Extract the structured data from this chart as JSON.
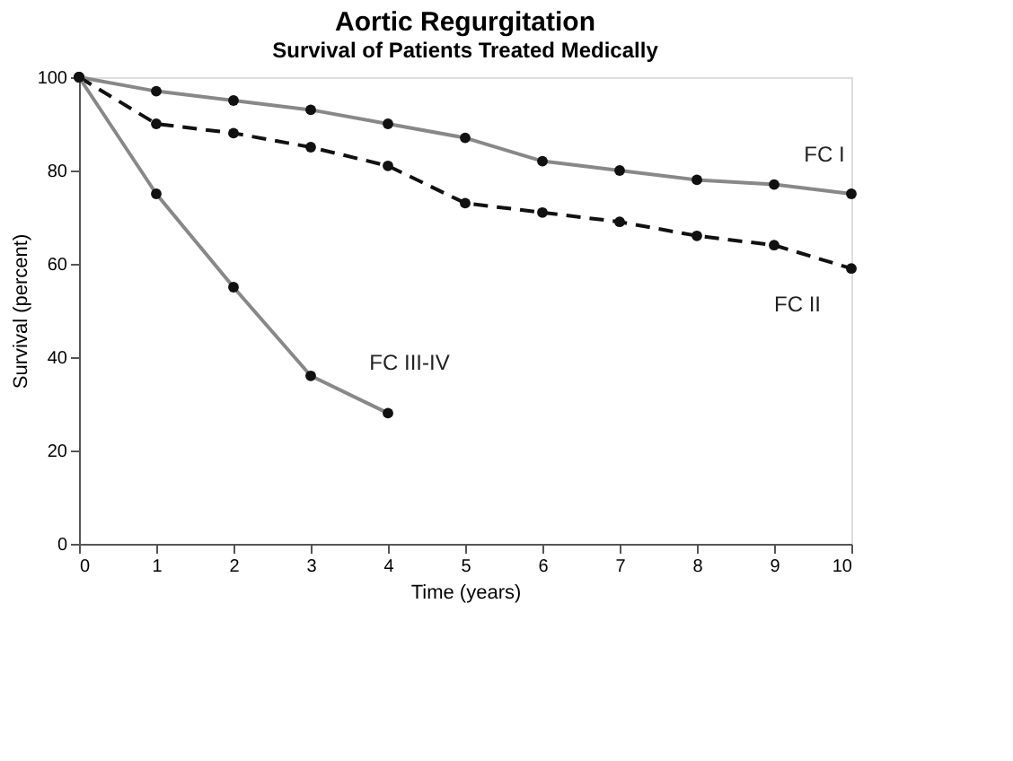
{
  "chart_data": {
    "type": "line",
    "title": "Aortic Regurgitation",
    "subtitle": "Survival of Patients Treated Medically",
    "xlabel": "Time (years)",
    "ylabel": "Survival (percent)",
    "x": [
      0,
      1,
      2,
      3,
      4,
      5,
      6,
      7,
      8,
      9,
      10
    ],
    "series": [
      {
        "name": "FC I",
        "color": "#888888",
        "line_style": "solid",
        "values": [
          100,
          97,
          95,
          93,
          90,
          87,
          82,
          80,
          78,
          77,
          75
        ]
      },
      {
        "name": "FC II",
        "color": "#111111",
        "line_style": "dashed",
        "values": [
          100,
          90,
          88,
          85,
          81,
          73,
          71,
          69,
          66,
          64,
          59
        ]
      },
      {
        "name": "FC III-IV",
        "color": "#888888",
        "line_style": "solid",
        "values": [
          100,
          75,
          55,
          36,
          28,
          null,
          null,
          null,
          null,
          null,
          null
        ]
      }
    ],
    "xlim": [
      0,
      10
    ],
    "xticks": [
      0,
      1,
      2,
      3,
      4,
      5,
      6,
      7,
      8,
      9,
      10
    ],
    "ylim": [
      0,
      100
    ],
    "yticks": [
      0,
      20,
      40,
      60,
      80,
      100
    ],
    "marker": "circle",
    "grid": false
  }
}
